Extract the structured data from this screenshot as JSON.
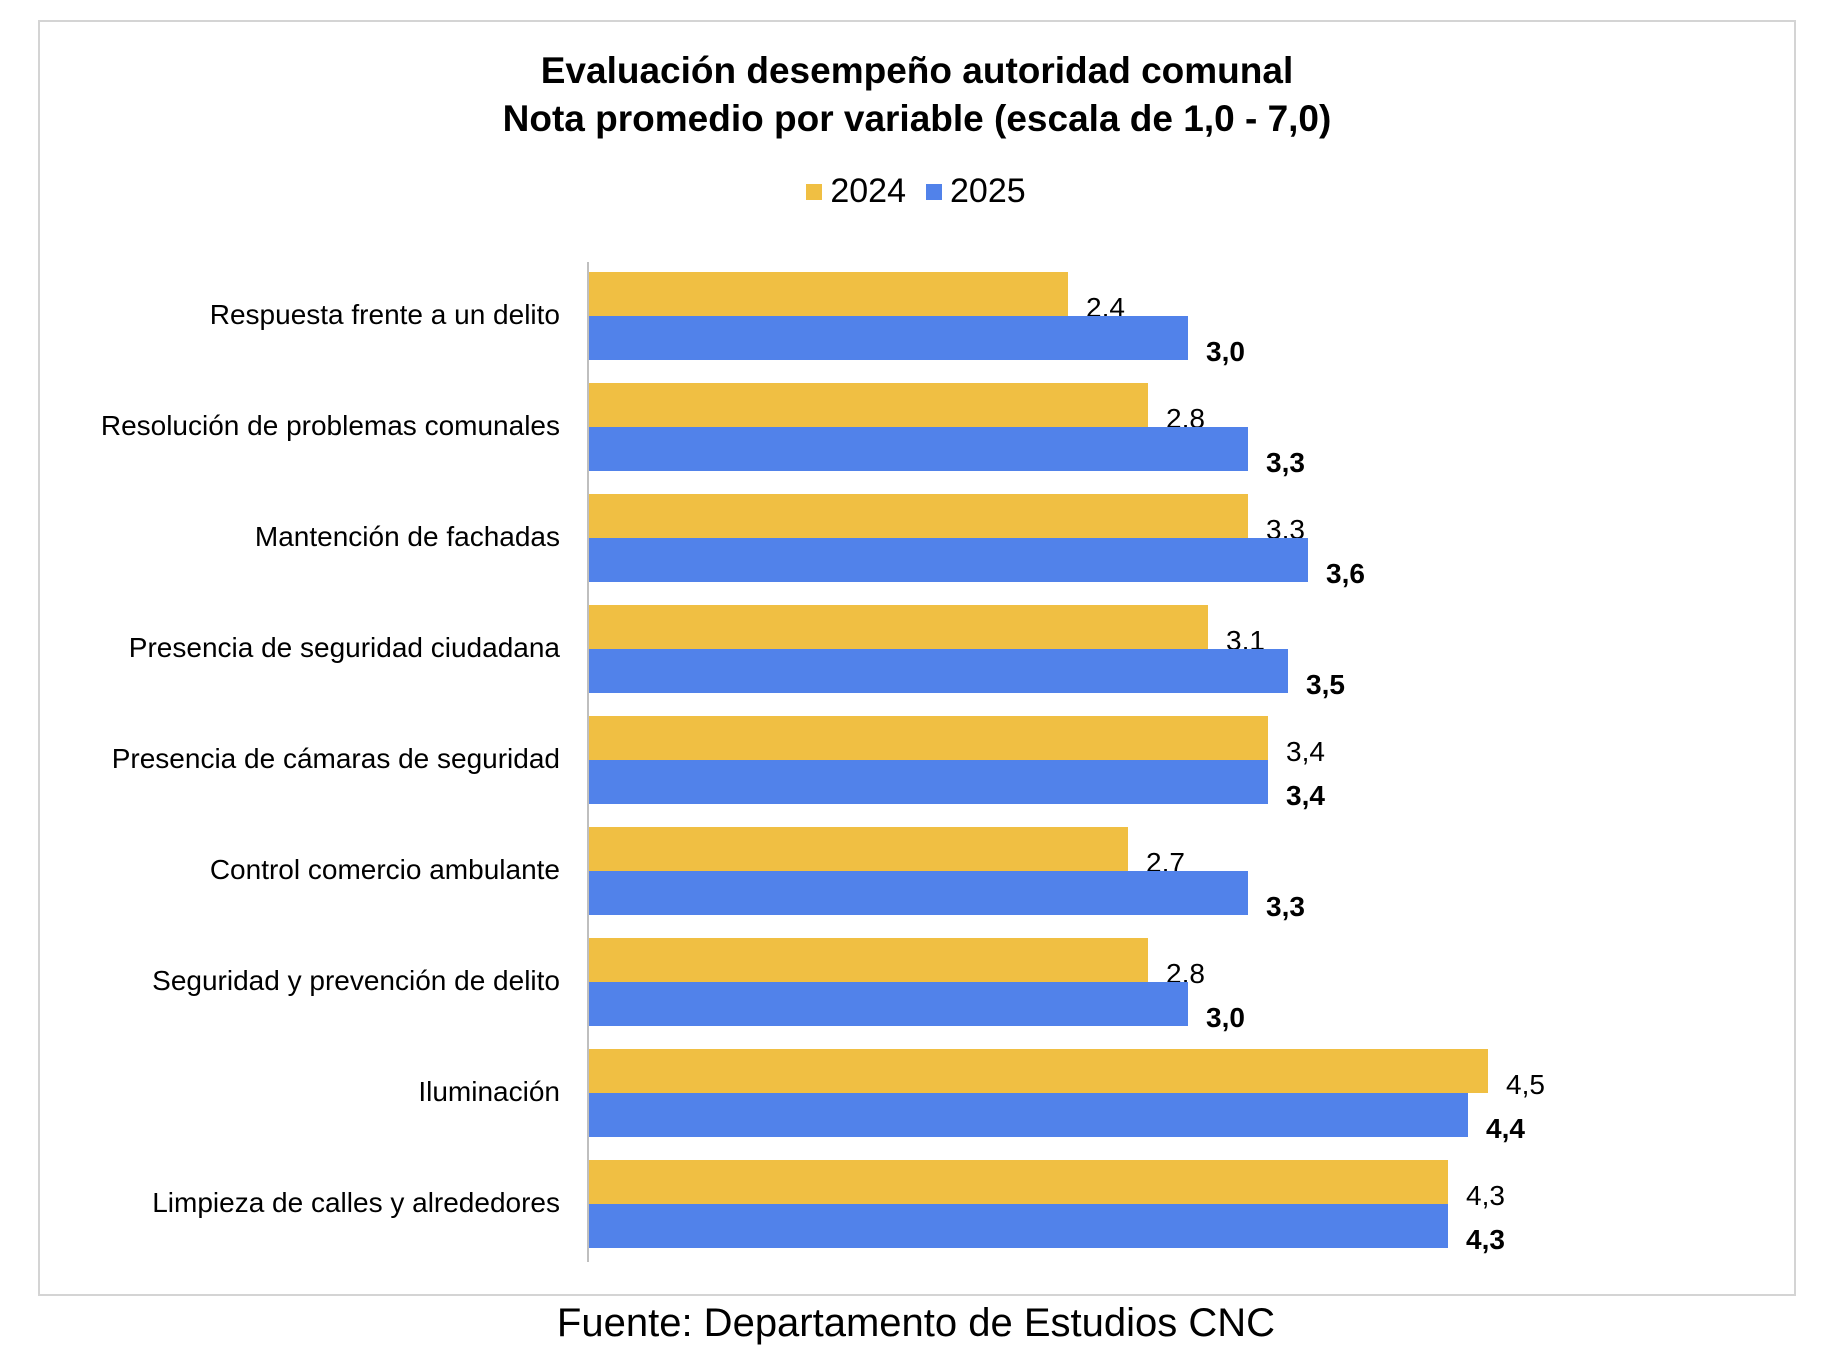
{
  "chart_data": {
    "type": "bar",
    "orientation": "horizontal",
    "title": "Evaluación desempeño autoridad comunal",
    "subtitle": "Nota promedio por variable (escala de 1,0 - 7,0)",
    "categories": [
      "Respuesta frente a un delito",
      "Resolución de problemas comunales",
      "Mantención de fachadas",
      "Presencia de seguridad ciudadana",
      "Presencia de cámaras de seguridad",
      "Control comercio ambulante",
      "Seguridad y prevención de delito",
      "Iluminación",
      "Limpieza de calles y alrededores"
    ],
    "series": [
      {
        "name": "2024",
        "color": "#f0bf43",
        "values": [
          2.4,
          2.8,
          3.3,
          3.1,
          3.4,
          2.7,
          2.8,
          4.5,
          4.3
        ],
        "labels": [
          "2,4",
          "2,8",
          "3,3",
          "3,1",
          "3,4",
          "2,7",
          "2,8",
          "4,5",
          "4,3"
        ],
        "label_bold": false
      },
      {
        "name": "2025",
        "color": "#5182ea",
        "values": [
          3.0,
          3.3,
          3.6,
          3.5,
          3.4,
          3.3,
          3.0,
          4.4,
          4.3
        ],
        "labels": [
          "3,0",
          "3,3",
          "3,6",
          "3,5",
          "3,4",
          "3,3",
          "3,0",
          "4,4",
          "4,3"
        ],
        "label_bold": true
      }
    ],
    "xlim": [
      0,
      5
    ],
    "grid": false,
    "legend_position": "top"
  },
  "source": "Fuente: Departamento de Estudios CNC"
}
